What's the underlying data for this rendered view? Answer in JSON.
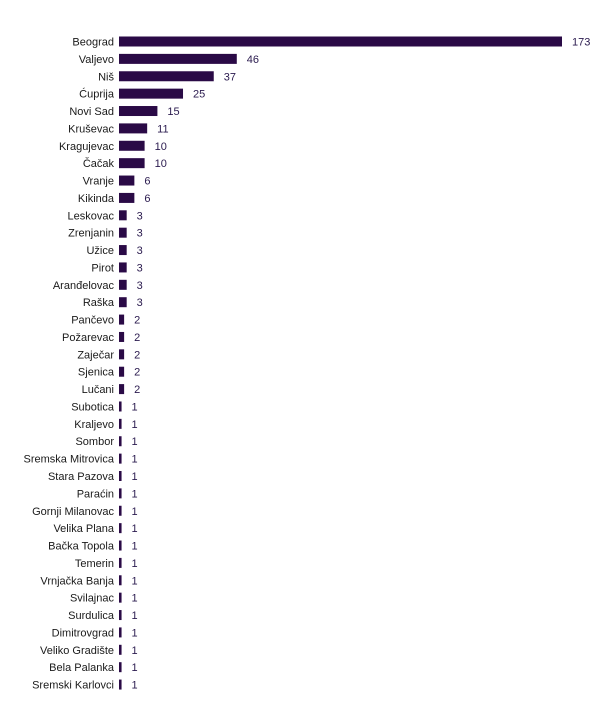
{
  "chart_data": {
    "type": "bar",
    "orientation": "horizontal",
    "title": "",
    "xlabel": "",
    "ylabel": "",
    "grid": false,
    "bar_color": "#2a0a46",
    "value_label_color": "#2a1a4e",
    "xlim": [
      0,
      173
    ],
    "categories": [
      "Beograd",
      "Valjevo",
      "Niš",
      "Ćuprija",
      "Novi Sad",
      "Kruševac",
      "Kragujevac",
      "Čačak",
      "Vranje",
      "Kikinda",
      "Leskovac",
      "Zrenjanin",
      "Užice",
      "Pirot",
      "Aranđelovac",
      "Raška",
      "Pančevo",
      "Požarevac",
      "Zaječar",
      "Sjenica",
      "Lučani",
      "Subotica",
      "Kraljevo",
      "Sombor",
      "Sremska Mitrovica",
      "Stara Pazova",
      "Paraćin",
      "Gornji Milanovac",
      "Velika Plana",
      "Bačka Topola",
      "Temerin",
      "Vrnjačka Banja",
      "Svilajnac",
      "Surdulica",
      "Dimitrovgrad",
      "Veliko Gradište",
      "Bela Palanka",
      "Sremski Karlovci"
    ],
    "values": [
      173,
      46,
      37,
      25,
      15,
      11,
      10,
      10,
      6,
      6,
      3,
      3,
      3,
      3,
      3,
      3,
      2,
      2,
      2,
      2,
      2,
      1,
      1,
      1,
      1,
      1,
      1,
      1,
      1,
      1,
      1,
      1,
      1,
      1,
      1,
      1,
      1,
      1
    ]
  }
}
